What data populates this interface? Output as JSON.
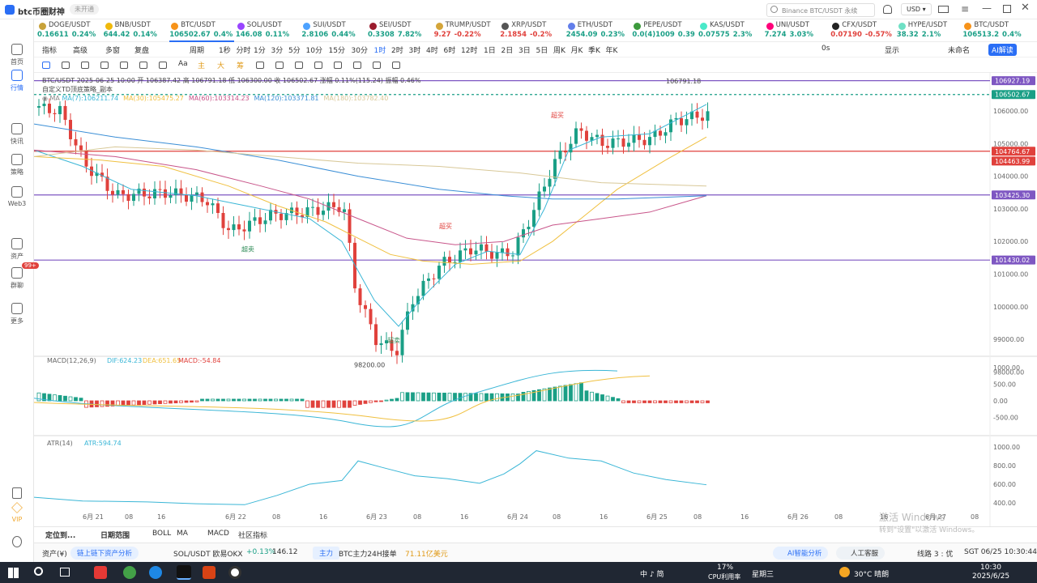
{
  "app": {
    "title": "btc币圈财神",
    "badge": "未开通",
    "search_placeholder": "Binance BTC/USDT 永续",
    "currency": "USD"
  },
  "sidebar": [
    {
      "label": "首页"
    },
    {
      "label": "行情"
    },
    {
      "label": "快讯"
    },
    {
      "label": "策略"
    },
    {
      "label": "Web3"
    },
    {
      "label": "资产"
    },
    {
      "label": "群聊",
      "badge": "99+"
    },
    {
      "label": "更多"
    },
    {
      "label": "VIP"
    }
  ],
  "tickers": [
    {
      "name": "DOGE/USDT",
      "price": "0.16611",
      "change": "0.24%",
      "dir": "up",
      "color": "#c8a23a"
    },
    {
      "name": "BNB/USDT",
      "price": "644.42",
      "change": "0.14%",
      "dir": "up",
      "color": "#f0b90b"
    },
    {
      "name": "BTC/USDT",
      "price": "106502.67",
      "change": "0.4%",
      "dir": "up",
      "color": "#f7931a",
      "active": true
    },
    {
      "name": "SOL/USDT",
      "price": "146.08",
      "change": "0.11%",
      "dir": "up",
      "color": "#9945ff"
    },
    {
      "name": "SUI/USDT",
      "price": "2.8106",
      "change": "0.44%",
      "dir": "up",
      "color": "#4da2ff"
    },
    {
      "name": "SEI/USDT",
      "price": "0.3308",
      "change": "7.82%",
      "dir": "up",
      "color": "#9b1c2e"
    },
    {
      "name": "TRUMP/USDT",
      "price": "9.27",
      "change": "-0.22%",
      "dir": "dn",
      "color": "#d4a53a"
    },
    {
      "name": "XRP/USDT",
      "price": "2.1854",
      "change": "-0.2%",
      "dir": "dn",
      "color": "#555"
    },
    {
      "name": "ETH/USDT",
      "price": "2454.09",
      "change": "0.23%",
      "dir": "up",
      "color": "#627eea"
    },
    {
      "name": "PEPE/USDT",
      "price": "0.0(4)1009",
      "change": "0.39",
      "dir": "up",
      "color": "#3c9a3c"
    },
    {
      "name": "KAS/USDT",
      "price": "0.07575",
      "change": "2.3%",
      "dir": "up",
      "color": "#49e9c9"
    },
    {
      "name": "UNI/USDT",
      "price": "7.274",
      "change": "3.03%",
      "dir": "up",
      "color": "#ff007a"
    },
    {
      "name": "CFX/USDT",
      "price": "0.07190",
      "change": "-0.57%",
      "dir": "dn",
      "color": "#222"
    },
    {
      "name": "HYPE/USDT",
      "price": "38.32",
      "change": "2.1%",
      "dir": "up",
      "color": "#6fe0c5"
    },
    {
      "name": "BTC/USDT",
      "price": "106513.2",
      "change": "0.4%",
      "dir": "up",
      "color": "#f7931a"
    }
  ],
  "toolbar": {
    "left": [
      "指标",
      "高级",
      "多窗",
      "复盘",
      "周期"
    ],
    "periods": [
      "1秒",
      "分时",
      "1分",
      "3分",
      "5分",
      "10分",
      "15分",
      "30分",
      "1时",
      "2时",
      "3时",
      "4时",
      "6时",
      "12时",
      "1日",
      "2日",
      "3日",
      "5日",
      "周K",
      "月K",
      "季K",
      "年K"
    ],
    "active_period": "1时",
    "right": [
      "0s",
      "显示",
      "未命名",
      "AI解读"
    ]
  },
  "drawing_tools": [
    "Aa",
    "主",
    "大",
    "筹"
  ],
  "legend": {
    "line1": "BTC/USDT  2025-06-25 10:00  开 106387.42  高 106791.18  低 106300.00  收 106502.67  涨幅 0.11%(115.24)  振幅 0.46%",
    "line2": "自定义TD顶底策略_副本",
    "ma": [
      {
        "text": "MA(7):106211.74",
        "color": "#3ab6d6"
      },
      {
        "text": "MA(30):105475.27",
        "color": "#f0c040"
      },
      {
        "text": "MA(60):103314.23",
        "color": "#c8558a"
      },
      {
        "text": "MA(120):103371.81",
        "color": "#3a8ed6"
      },
      {
        "text": "MA(180):103782.40",
        "color": "#d8c898"
      }
    ]
  },
  "price_labels": [
    {
      "value": "106927.19",
      "color": "#7e57c2"
    },
    {
      "value": "106502.67",
      "color": "#1a9f86"
    },
    {
      "value": "104764.67",
      "color": "#e0413c"
    },
    {
      "value": "104463.99",
      "color": "#e0413c"
    },
    {
      "value": "103425.30",
      "color": "#7e57c2"
    },
    {
      "value": "101430.02",
      "color": "#7e57c2"
    }
  ],
  "y_axis": [
    "106000.00",
    "105000.00",
    "104000.00",
    "103000.00",
    "102000.00",
    "101000.00",
    "100000.00",
    "99000.00",
    "98000.00"
  ],
  "annotations": {
    "high": "106791.18",
    "low": "98200.00",
    "oversold": "超卖",
    "overbought": "超买"
  },
  "macd": {
    "label": "MACD(12,26,9)",
    "dif": "DIF:624.23",
    "dea": "DEA:651.65",
    "macd": "MACD:-54.84",
    "ticks": [
      "1000.00",
      "500.00",
      "0.00",
      "-500.00"
    ]
  },
  "atr": {
    "label": "ATR(14)",
    "value": "ATR:594.74",
    "ticks": [
      "1000.00",
      "800.00",
      "600.00",
      "400.00"
    ]
  },
  "x_axis": [
    "6月 21",
    "08",
    "16",
    "6月 22",
    "08",
    "16",
    "6月 23",
    "08",
    "16",
    "6月 24",
    "08",
    "16",
    "6月 25",
    "08",
    "16",
    "6月 26",
    "08",
    "16",
    "6月 27",
    "08"
  ],
  "x_axis_right": "对数  %  自动",
  "bottombar": {
    "items": [
      "定位到...",
      "日期范围",
      "BOLL",
      "MA",
      "MACD",
      "社区指标"
    ]
  },
  "statusbar": {
    "asset": "资产(¥)",
    "chain": "链上链下资产分析",
    "pair": "SOL/USDT 欧易OKX",
    "pair_change": "+0.13%",
    "pair_price": "146.12",
    "main_tag": "主力",
    "flow": "BTC主力24H接单",
    "flow_value": "71.11亿美元",
    "ai": "AI智能分析",
    "service": "人工客服",
    "line": "线路 3 : 优",
    "time": "SGT 06/25 10:30:44"
  },
  "watermark": {
    "line1": "激活 Windows",
    "line2": "转到\"设置\"以激活 Windows。"
  },
  "taskbar": {
    "cpu": "17%",
    "cpu_label": "CPU利用率",
    "weekday": "星期三",
    "weather": "30°C 晴朗",
    "ime": "中 ♪ 简",
    "clock_time": "10:30",
    "clock_date": "2025/6/25"
  }
}
